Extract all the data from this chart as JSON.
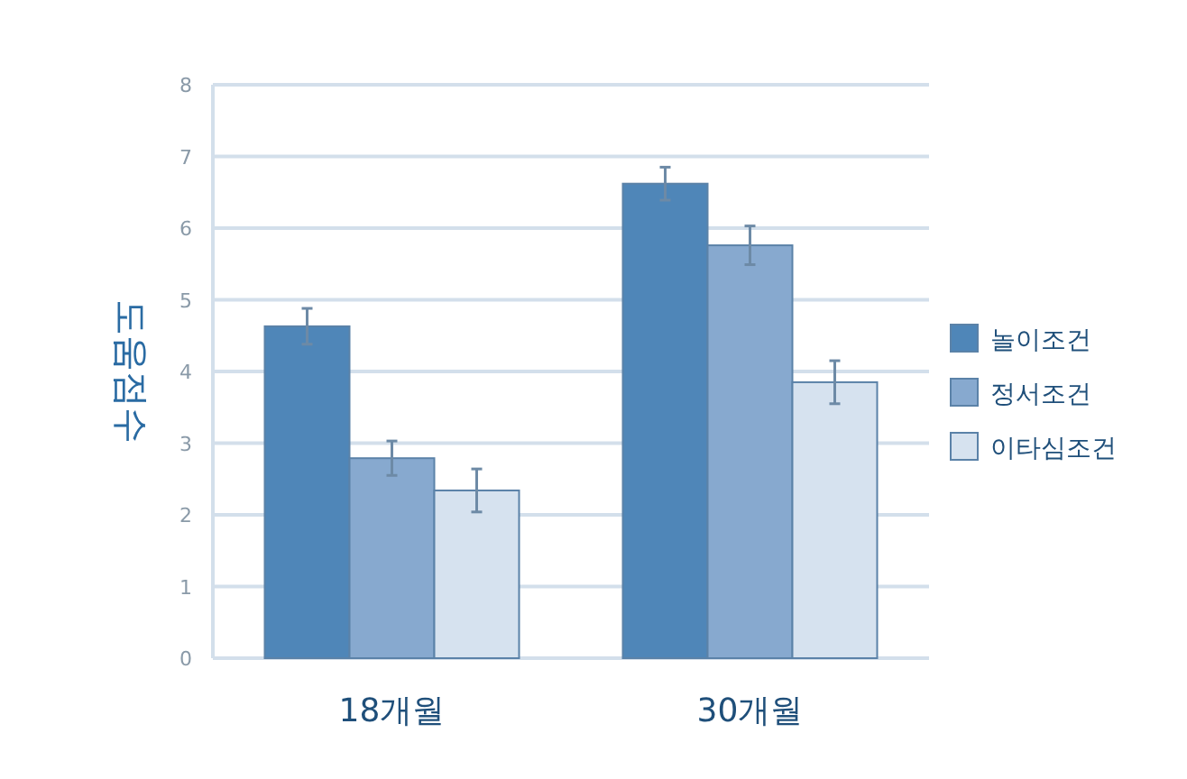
{
  "chart_data": {
    "type": "bar",
    "ylabel": "도움점수",
    "categories": [
      "18개월",
      "30개월"
    ],
    "ylim": [
      0,
      8
    ],
    "yticks": [
      0,
      1,
      2,
      3,
      4,
      5,
      6,
      7,
      8
    ],
    "grid": "y",
    "legend": "right",
    "series": [
      {
        "name": "놀이조건",
        "color": "#4f86b8",
        "values": [
          4.63,
          6.62
        ],
        "errors": [
          0.25,
          0.23
        ]
      },
      {
        "name": "정서조건",
        "color": "#87a9cf",
        "values": [
          2.79,
          5.76
        ],
        "errors": [
          0.24,
          0.27
        ]
      },
      {
        "name": "이타심조건",
        "color": "#d6e2ef",
        "values": [
          2.34,
          3.85
        ],
        "errors": [
          0.3,
          0.3
        ]
      }
    ]
  }
}
